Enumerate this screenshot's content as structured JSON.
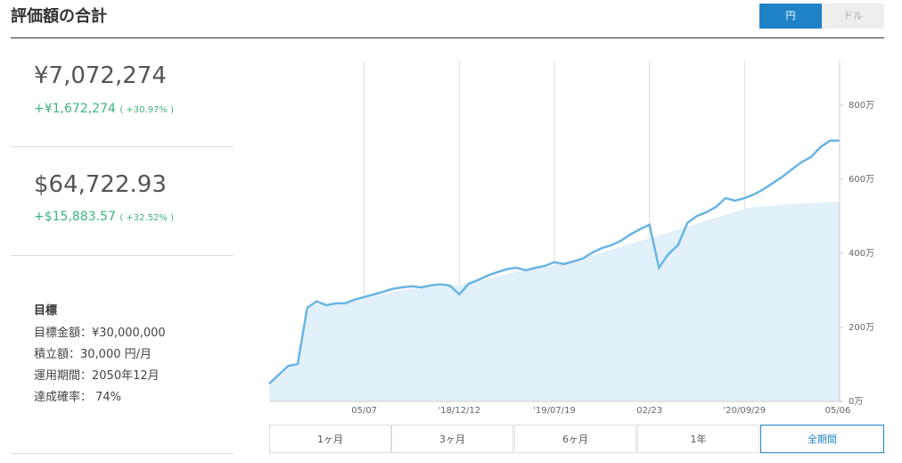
{
  "header": {
    "title": "評価額の合計",
    "currency_toggle": [
      "円",
      "ドル"
    ]
  },
  "summary": [
    {
      "value": "¥7,072,274",
      "change": "+¥1,672,274",
      "change_pct": "( +30.97% )"
    },
    {
      "value": "$64,722.93",
      "change": "+$15,883.57",
      "change_pct": "( +32.52% )"
    }
  ],
  "goal": {
    "title": "目標",
    "items": [
      "目標金額：¥30,000,000",
      "積立額：30,000 円/月",
      "運用期間：2050年12月",
      "達成確率： 74%"
    ]
  },
  "range_buttons": [
    "1ヶ月",
    "3ヶ月",
    "6ヶ月",
    "1年",
    "全期間"
  ],
  "chart_data": {
    "type": "line",
    "x": [
      null,
      null,
      null,
      null,
      null,
      null,
      null,
      null,
      null,
      null,
      "05/07",
      null,
      null,
      null,
      null,
      null,
      null,
      null,
      null,
      null,
      "'18/12/12",
      null,
      null,
      null,
      null,
      null,
      null,
      null,
      null,
      null,
      "'19/07/19",
      null,
      null,
      null,
      null,
      null,
      null,
      null,
      null,
      null,
      "02/23",
      null,
      null,
      null,
      null,
      null,
      null,
      null,
      null,
      null,
      "'20/09/29",
      null,
      null,
      null,
      null,
      null,
      null,
      null,
      null,
      null,
      "05/06"
    ],
    "series": [
      {
        "color": "#6ab4e4",
        "values": [
          48,
          72,
          96,
          101,
          253,
          270,
          260,
          265,
          265,
          275,
          282,
          289,
          296,
          304,
          308,
          311,
          308,
          313,
          316,
          313,
          289,
          318,
          328,
          340,
          349,
          357,
          361,
          354,
          361,
          366,
          376,
          371,
          378,
          386,
          402,
          414,
          422,
          434,
          451,
          465,
          477,
          361,
          398,
          422,
          482,
          501,
          511,
          525,
          549,
          542,
          549,
          559,
          573,
          590,
          607,
          627,
          646,
          660,
          687,
          704,
          704
        ]
      },
      {
        "color": "#e2f0fa",
        "values": [
          48,
          70,
          95,
          100,
          260,
          262,
          262,
          266,
          268,
          272,
          280,
          285,
          290,
          296,
          300,
          304,
          306,
          308,
          310,
          312,
          315,
          320,
          326,
          332,
          338,
          344,
          350,
          354,
          358,
          362,
          368,
          374,
          380,
          386,
          394,
          402,
          410,
          418,
          426,
          434,
          440,
          448,
          456,
          464,
          472,
          480,
          488,
          496,
          504,
          512,
          520,
          524,
          527,
          529,
          531,
          533,
          535,
          536,
          537,
          538,
          540
        ]
      }
    ],
    "ylim": [
      0,
      920
    ],
    "yticks": [
      {
        "value": 0,
        "label": "0万"
      },
      {
        "value": 200,
        "label": "200万"
      },
      {
        "value": 400,
        "label": "400万"
      },
      {
        "value": 600,
        "label": "600万"
      },
      {
        "value": 800,
        "label": "800万"
      }
    ]
  }
}
